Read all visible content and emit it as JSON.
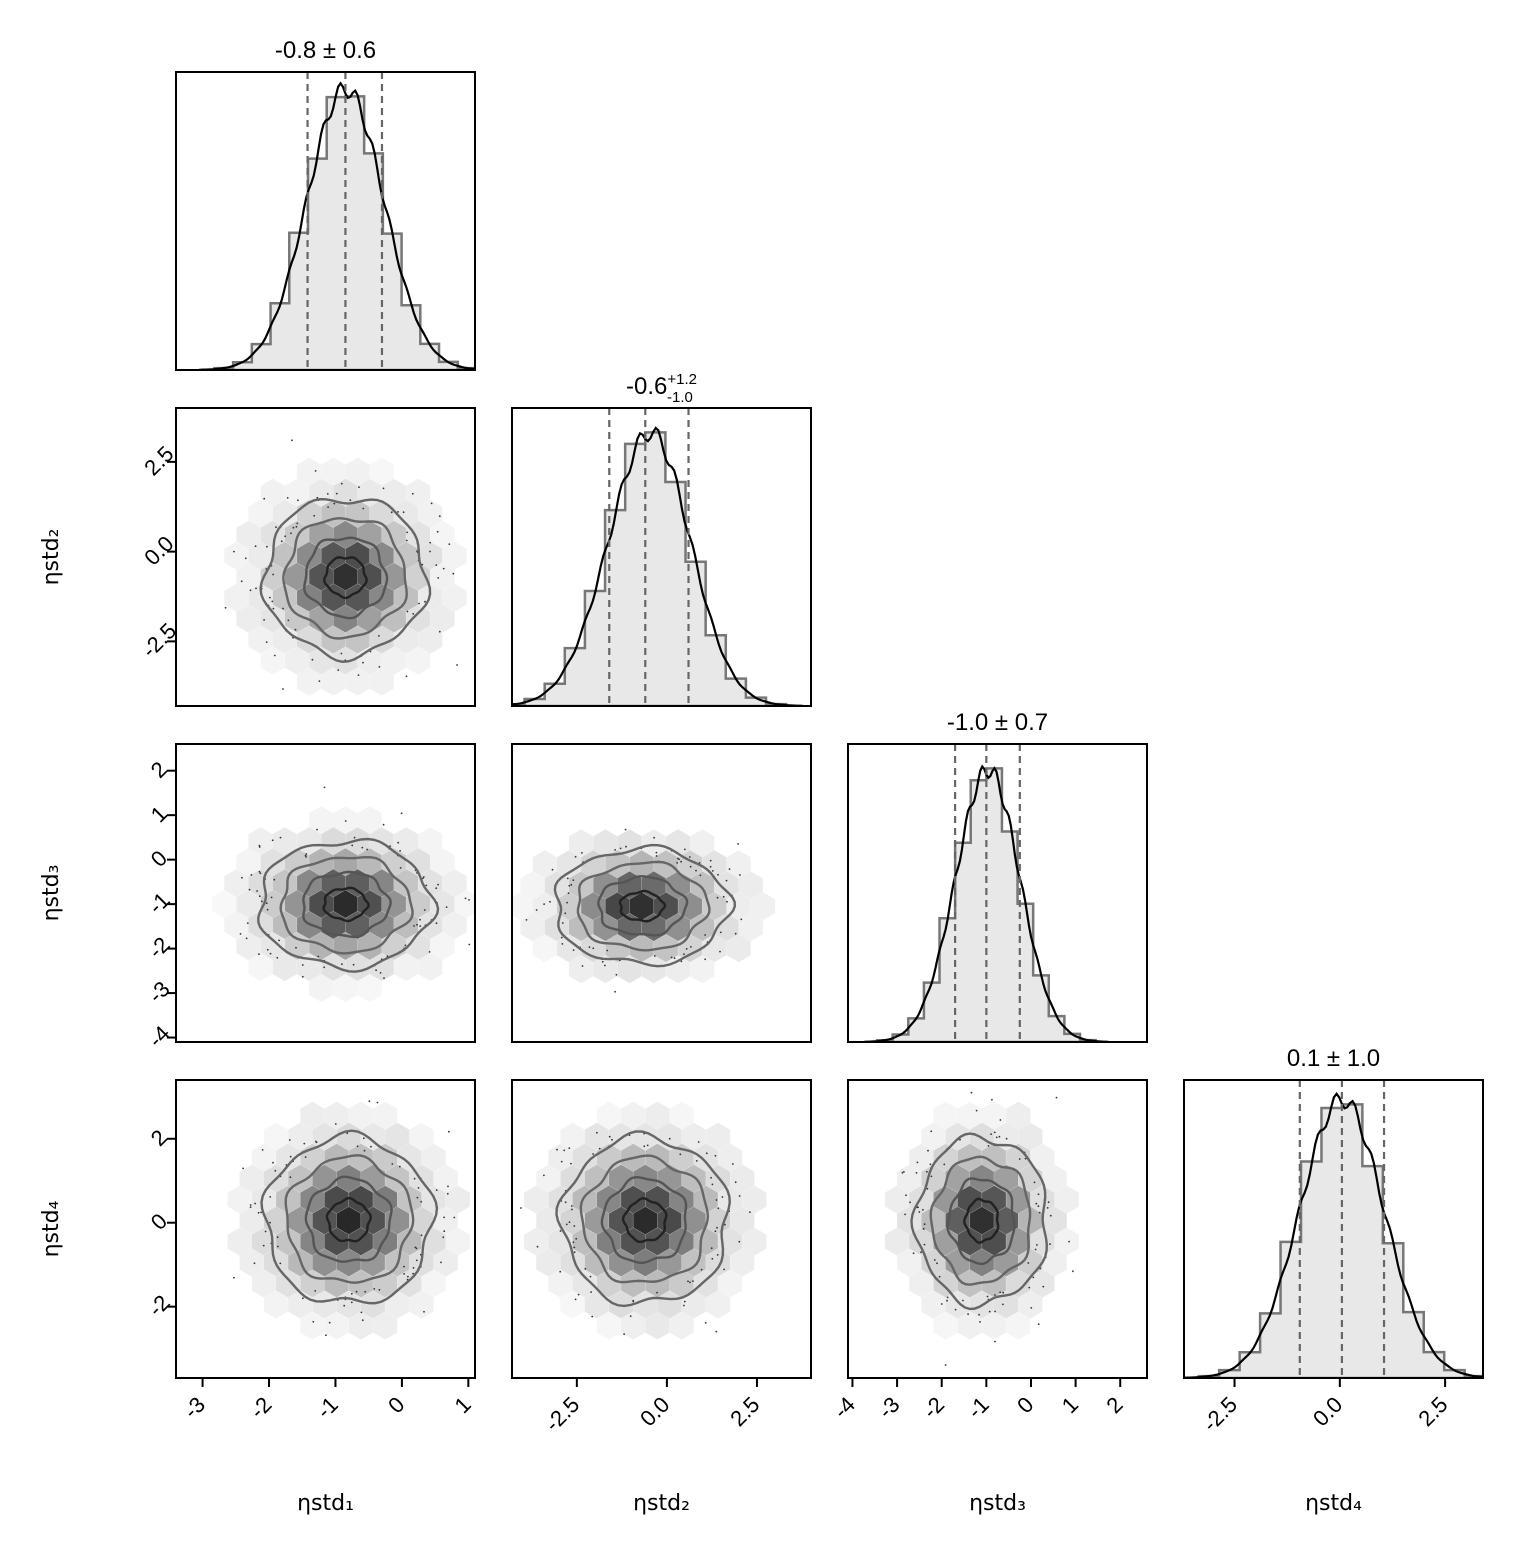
{
  "chart_data": {
    "type": "corner",
    "parameters": [
      "ηstd₁",
      "ηstd₂",
      "ηstd₃",
      "ηstd₄"
    ],
    "axes": [
      {
        "xlim": [
          -3.4,
          1.1
        ],
        "ticks": [
          -3,
          -2,
          -1,
          0,
          1
        ],
        "tick_labels": [
          "-3",
          "-2",
          "-1",
          "0",
          "1"
        ]
      },
      {
        "xlim": [
          -4.3,
          4.0
        ],
        "ticks": [
          -2.5,
          0.0,
          2.5
        ],
        "tick_labels": [
          "-2.5",
          "0.0",
          "2.5"
        ]
      },
      {
        "xlim": [
          -4.1,
          2.6
        ],
        "ticks": [
          -4,
          -3,
          -2,
          -1,
          0,
          1,
          2
        ],
        "tick_labels": [
          "-4",
          "-3",
          "-2",
          "-1",
          "0",
          "1",
          "2"
        ]
      },
      {
        "xlim": [
          -3.7,
          3.4
        ],
        "ticks": [
          -2,
          0,
          2
        ],
        "tick_labels": [
          "-2",
          "0",
          "2"
        ],
        "hist_ticks": [
          -2.5,
          0.0,
          2.5
        ],
        "hist_tick_labels": [
          "-2.5",
          "0.0",
          "2.5"
        ]
      }
    ],
    "titles": [
      {
        "value": "-0.8",
        "sym": "± 0.6",
        "plus": "",
        "minus": ""
      },
      {
        "value": "-0.6",
        "sym": "",
        "plus": "+1.2",
        "minus": "-1.0"
      },
      {
        "value": "-1.0",
        "sym": "± 0.7",
        "plus": "",
        "minus": ""
      },
      {
        "value": "0.1",
        "sym": "± 1.0",
        "plus": "",
        "minus": ""
      }
    ],
    "marginals": [
      {
        "mean": -0.85,
        "sd": 0.58,
        "skew": 0.0,
        "quantiles": [
          -1.42,
          -0.85,
          -0.3
        ]
      },
      {
        "mean": -0.6,
        "sd": 1.15,
        "skew": 0.35,
        "quantiles": [
          -1.6,
          -0.6,
          0.6
        ]
      },
      {
        "mean": -1.0,
        "sd": 0.72,
        "skew": 0.15,
        "quantiles": [
          -1.7,
          -1.0,
          -0.25
        ]
      },
      {
        "mean": 0.05,
        "sd": 1.0,
        "skew": 0.0,
        "quantiles": [
          -0.95,
          0.05,
          1.05
        ]
      }
    ],
    "pairs": [
      {
        "x": 0,
        "y": 1,
        "center": [
          -0.85,
          -0.7
        ],
        "sd": [
          0.58,
          1.05
        ]
      },
      {
        "x": 0,
        "y": 2,
        "center": [
          -0.85,
          -1.0
        ],
        "sd": [
          0.62,
          0.68
        ]
      },
      {
        "x": 1,
        "y": 2,
        "center": [
          -0.7,
          -1.05
        ],
        "sd": [
          1.15,
          0.62
        ]
      },
      {
        "x": 0,
        "y": 3,
        "center": [
          -0.8,
          0.05
        ],
        "sd": [
          0.6,
          0.95
        ]
      },
      {
        "x": 1,
        "y": 3,
        "center": [
          -0.6,
          0.05
        ],
        "sd": [
          1.1,
          0.95
        ]
      },
      {
        "x": 2,
        "y": 3,
        "center": [
          -1.1,
          0.05
        ],
        "sd": [
          0.7,
          0.95
        ]
      }
    ],
    "contour_levels_sigma": [
      0.5,
      1.0,
      1.5,
      2.0
    ]
  }
}
